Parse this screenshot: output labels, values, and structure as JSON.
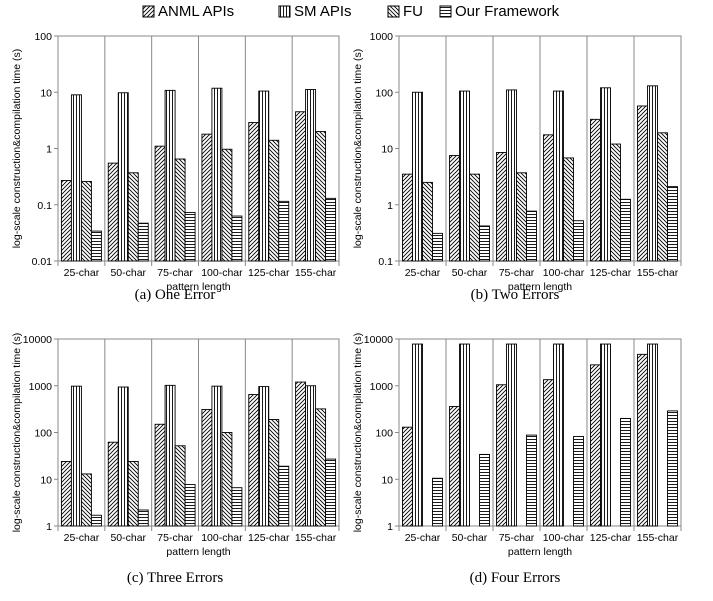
{
  "legend": [
    "ANML APIs",
    "SM APIs",
    "FU",
    "Our Framework"
  ],
  "chart_data": [
    {
      "type": "bar",
      "caption": "(a) One Error",
      "xlabel": "pattern length",
      "ylabel": "log-scale construction&compilation time (s)",
      "yscale": "log",
      "ylim": [
        0.01,
        100
      ],
      "yticks": [
        "0.01",
        "0.1",
        "1",
        "10",
        "100"
      ],
      "categories": [
        "25-char",
        "50-char",
        "75-char",
        "100-char",
        "125-char",
        "155-char"
      ],
      "series": [
        {
          "name": "ANML APIs",
          "values": [
            0.27,
            0.55,
            1.1,
            1.8,
            2.9,
            4.5
          ]
        },
        {
          "name": "SM APIs",
          "values": [
            9.0,
            9.8,
            10.8,
            11.8,
            10.5,
            11.2
          ]
        },
        {
          "name": "FU",
          "values": [
            0.26,
            0.37,
            0.65,
            0.97,
            1.4,
            2.0
          ]
        },
        {
          "name": "Our Framework",
          "values": [
            0.034,
            0.047,
            0.073,
            0.063,
            0.115,
            0.13
          ]
        }
      ]
    },
    {
      "type": "bar",
      "caption": "(b) Two Errors",
      "xlabel": "pattern length",
      "ylabel": "log-scale construction&compilation time (s)",
      "yscale": "log",
      "ylim": [
        0.1,
        1000
      ],
      "yticks": [
        "0.1",
        "1",
        "10",
        "100",
        "1000"
      ],
      "categories": [
        "25-char",
        "50-char",
        "75-char",
        "100-char",
        "125-char",
        "155-char"
      ],
      "series": [
        {
          "name": "ANML APIs",
          "values": [
            3.5,
            7.5,
            8.5,
            17.5,
            33,
            57
          ]
        },
        {
          "name": "SM APIs",
          "values": [
            100,
            105,
            110,
            105,
            120,
            130
          ]
        },
        {
          "name": "FU",
          "values": [
            2.5,
            3.5,
            3.7,
            6.8,
            12,
            19
          ]
        },
        {
          "name": "Our Framework",
          "values": [
            0.31,
            0.42,
            0.77,
            0.52,
            1.25,
            2.1
          ]
        }
      ]
    },
    {
      "type": "bar",
      "caption": "(c) Three Errors",
      "xlabel": "pattern length",
      "ylabel": "log-scale construction&compilation time (s)",
      "yscale": "log",
      "ylim": [
        1,
        10000
      ],
      "yticks": [
        "1",
        "10",
        "100",
        "1000",
        "10000"
      ],
      "categories": [
        "25-char",
        "50-char",
        "75-char",
        "100-char",
        "125-char",
        "155-char"
      ],
      "series": [
        {
          "name": "ANML APIs",
          "values": [
            24,
            62,
            150,
            310,
            650,
            1200
          ]
        },
        {
          "name": "SM APIs",
          "values": [
            980,
            940,
            1020,
            980,
            960,
            1000
          ]
        },
        {
          "name": "FU",
          "values": [
            13,
            24,
            52,
            100,
            190,
            320
          ]
        },
        {
          "name": "Our Framework",
          "values": [
            1.7,
            2.2,
            7.7,
            6.6,
            19,
            27
          ]
        }
      ]
    },
    {
      "type": "bar",
      "caption": "(d) Four Errors",
      "xlabel": "pattern length",
      "ylabel": "log-scale construction&compilation time (s)",
      "yscale": "log",
      "ylim": [
        1,
        10000
      ],
      "yticks": [
        "1",
        "10",
        "100",
        "1000",
        "10000"
      ],
      "categories": [
        "25-char",
        "50-char",
        "75-char",
        "100-char",
        "125-char",
        "155-char"
      ],
      "series": [
        {
          "name": "ANML APIs",
          "values": [
            130,
            360,
            1050,
            1350,
            2800,
            4700
          ]
        },
        {
          "name": "SM APIs",
          "values": [
            7800,
            7800,
            7800,
            7800,
            7800,
            7800
          ]
        },
        {
          "name": "FU",
          "values": [
            null,
            null,
            null,
            null,
            null,
            null
          ]
        },
        {
          "name": "Our Framework",
          "values": [
            10.5,
            34,
            88,
            82,
            200,
            290
          ]
        }
      ]
    }
  ]
}
